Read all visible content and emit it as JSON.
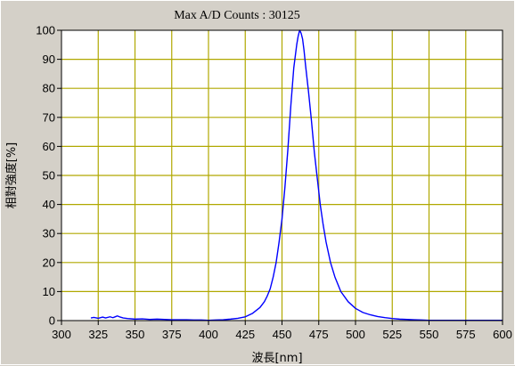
{
  "chart_data": {
    "type": "line",
    "title": "Max A/D Counts : 30125",
    "xlabel": "波長[nm]",
    "ylabel": "相對強度[%]",
    "xlim": [
      300,
      600
    ],
    "ylim": [
      0,
      100
    ],
    "xticks": [
      300,
      325,
      350,
      375,
      400,
      425,
      450,
      475,
      500,
      525,
      550,
      575,
      600
    ],
    "yticks": [
      0,
      10,
      20,
      30,
      40,
      50,
      60,
      70,
      80,
      90,
      100
    ],
    "grid": true,
    "colors": {
      "plot_bg": "#ffffff",
      "grid": "#b0a800",
      "line": "#0000ff",
      "frame": "#000000"
    },
    "series": [
      {
        "x": [
          320,
          322,
          325,
          328,
          330,
          333,
          335,
          337,
          338,
          340,
          342,
          345,
          350,
          355,
          360,
          365,
          370,
          375,
          380,
          385,
          390,
          395,
          400,
          405,
          410,
          415,
          420,
          425,
          430,
          435,
          438,
          440,
          442,
          444,
          446,
          448,
          450,
          452,
          454,
          456,
          458,
          460,
          461,
          462,
          463,
          464,
          465,
          466,
          468,
          470,
          472,
          474,
          476,
          478,
          480,
          483,
          486,
          490,
          495,
          500,
          505,
          510,
          515,
          520,
          525,
          530,
          535,
          540,
          545,
          550,
          560,
          570,
          580,
          590,
          600
        ],
        "y": [
          0.9,
          1.1,
          0.8,
          1.2,
          0.9,
          1.3,
          1.0,
          1.4,
          1.6,
          1.2,
          0.9,
          0.7,
          0.5,
          0.6,
          0.4,
          0.5,
          0.4,
          0.3,
          0.3,
          0.3,
          0.2,
          0.2,
          0.1,
          0.2,
          0.3,
          0.5,
          0.8,
          1.3,
          2.5,
          4.5,
          6.5,
          8.5,
          11,
          15,
          20,
          27,
          35,
          46,
          59,
          74,
          87,
          95,
          98,
          100,
          99,
          97,
          93,
          88,
          79,
          69,
          58,
          49,
          40,
          33,
          27,
          20,
          15,
          10,
          6.5,
          4.2,
          2.8,
          2.0,
          1.4,
          1.0,
          0.7,
          0.5,
          0.4,
          0.3,
          0.2,
          0.1,
          0.1,
          0.1,
          0.1,
          0.1,
          0.1
        ]
      }
    ]
  }
}
